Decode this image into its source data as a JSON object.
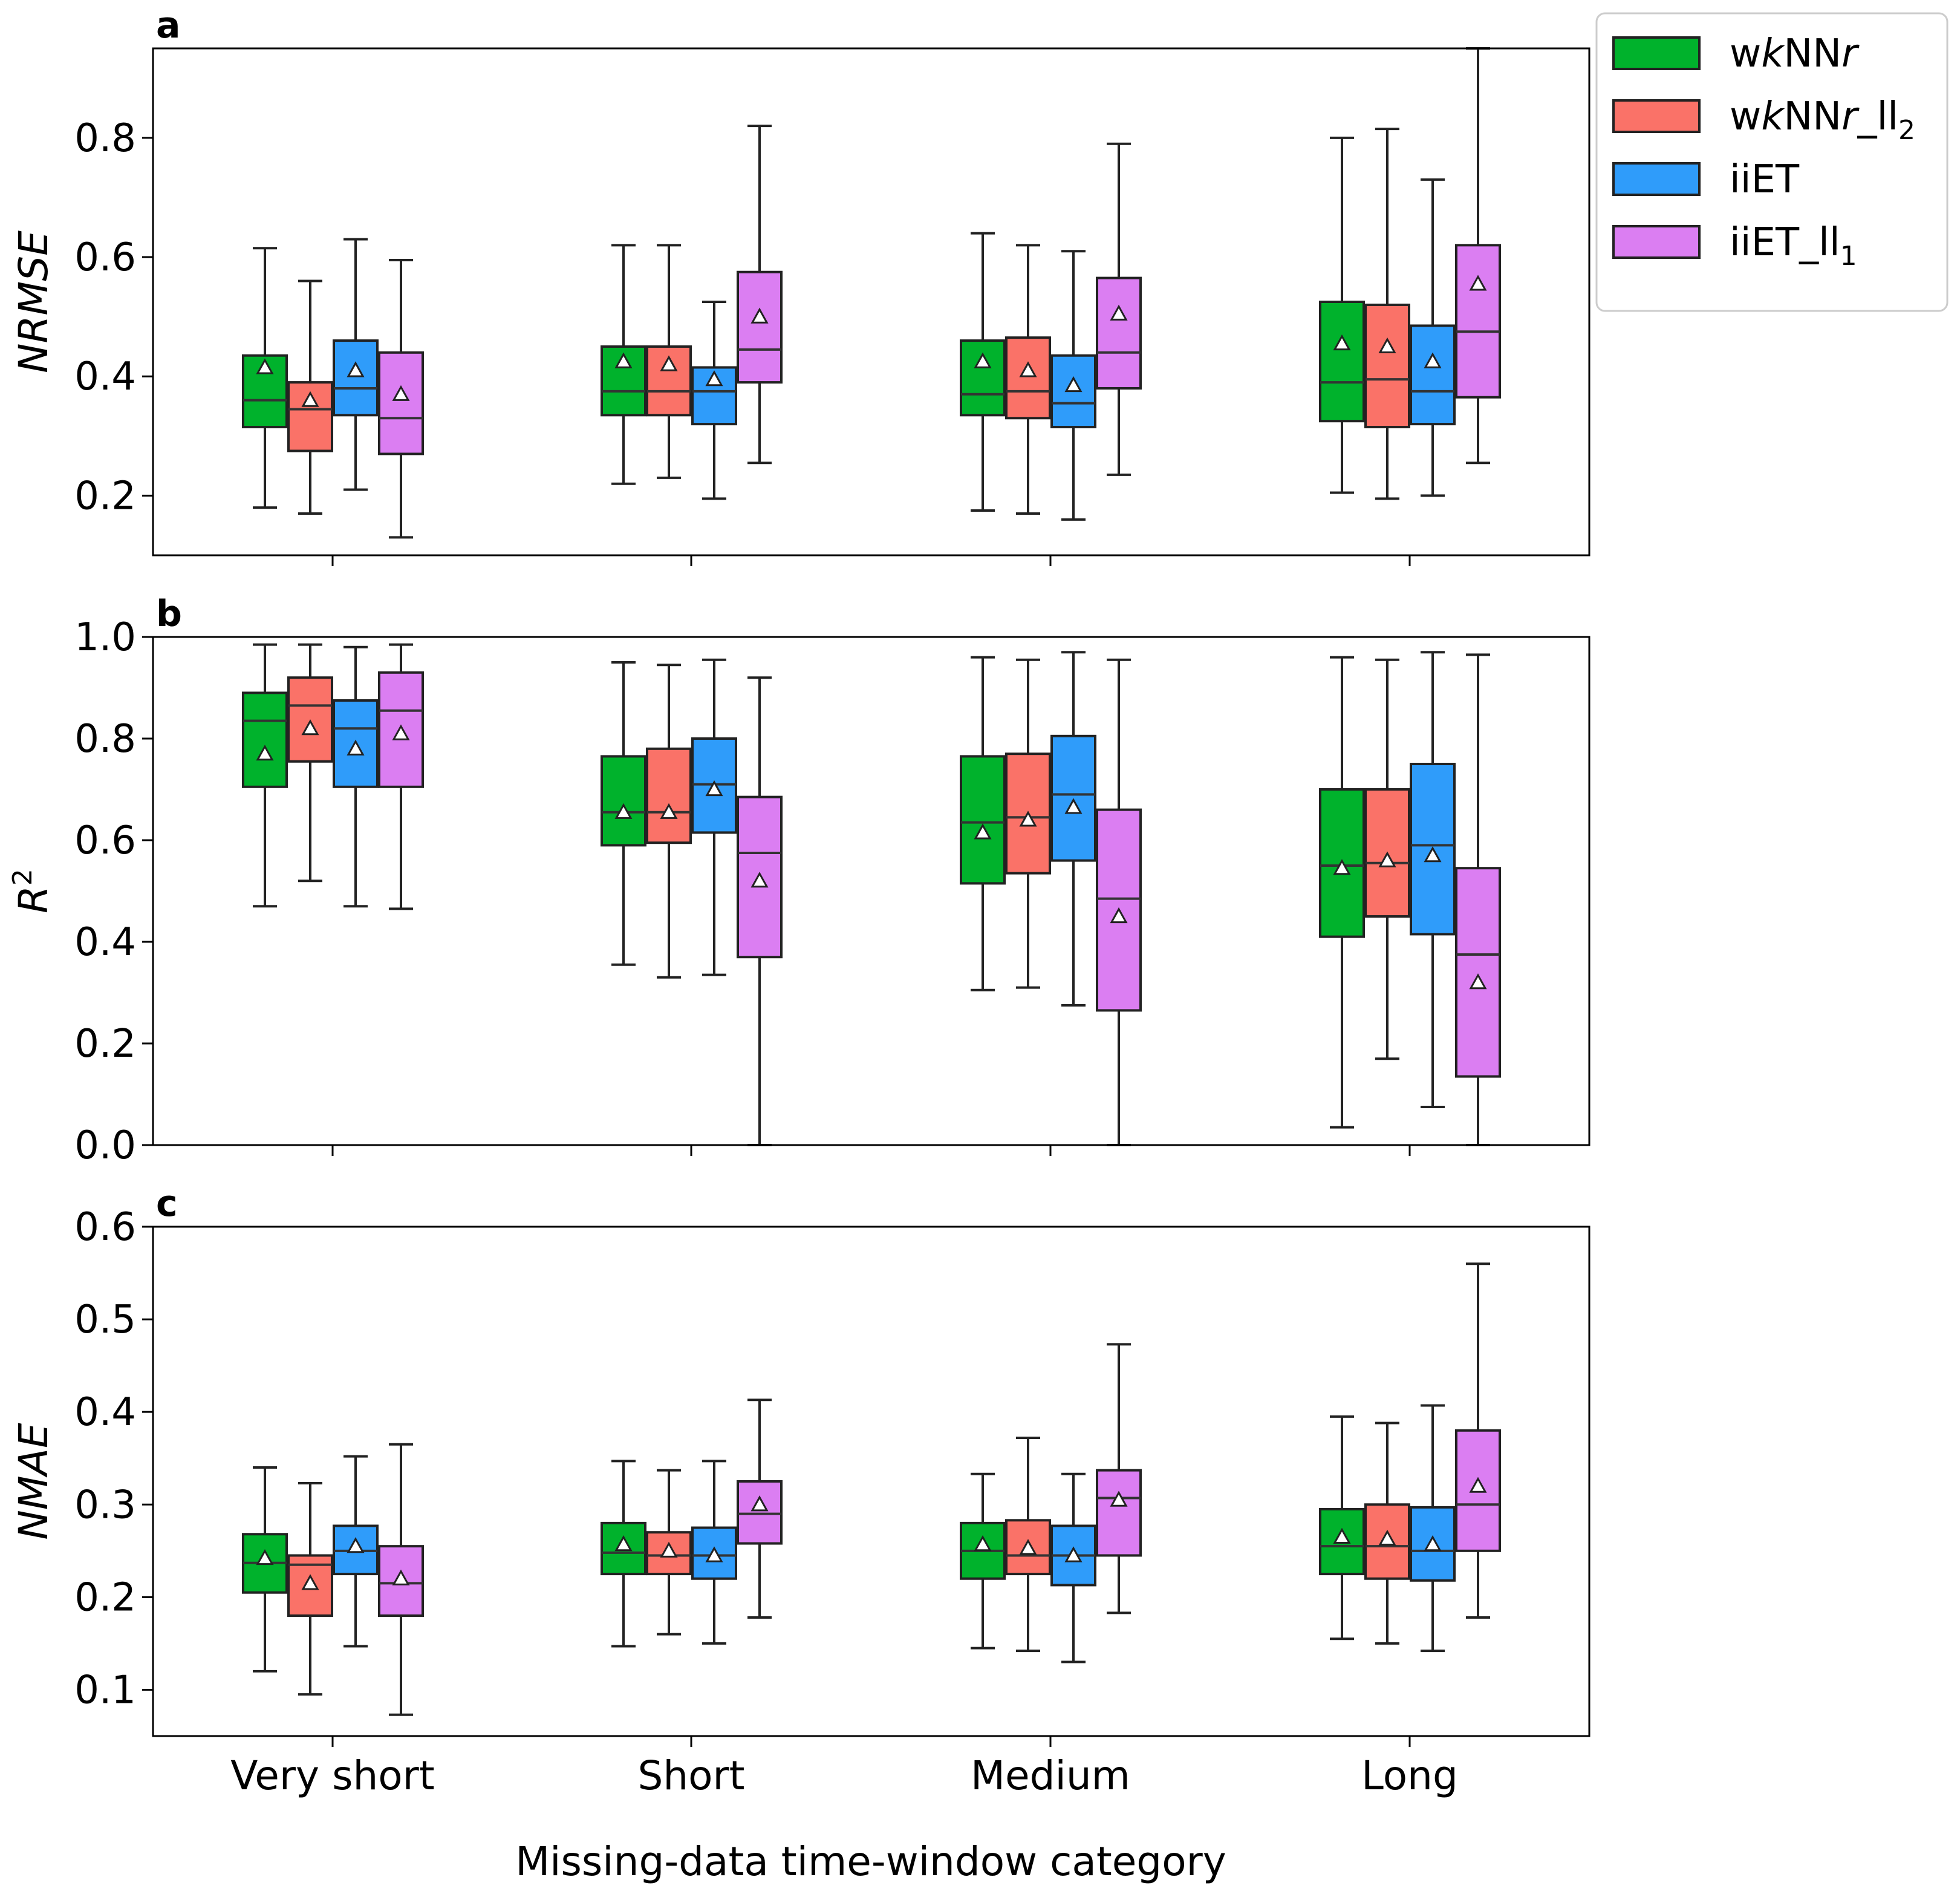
{
  "figure": {
    "xlabel": "Missing-data time-window category",
    "categories": [
      "Very short",
      "Short",
      "Medium",
      "Long"
    ]
  },
  "legend": {
    "placement": "top-right-outside",
    "entries": [
      {
        "pre": "w",
        "italic": "k",
        "mid": "NN",
        "italic2": "r",
        "post": "",
        "sub": "",
        "color": "#00b22c"
      },
      {
        "pre": "w",
        "italic": "k",
        "mid": "NN",
        "italic2": "r",
        "post": "_ll",
        "sub": "2",
        "color": "#fa7268"
      },
      {
        "pre": "iiET",
        "italic": "",
        "mid": "",
        "italic2": "",
        "post": "",
        "sub": "",
        "color": "#2f9cfa"
      },
      {
        "pre": "iiET_ll",
        "italic": "",
        "mid": "",
        "italic2": "",
        "post": "",
        "sub": "1",
        "color": "#db7ef2"
      }
    ]
  },
  "chart_data": [
    {
      "type": "box",
      "panel_letter": "a",
      "ylabel": "NRMSE",
      "ylabel_sup": "",
      "ylim": [
        0.1,
        0.95
      ],
      "yticks": [
        0.2,
        0.4,
        0.6,
        0.8
      ],
      "tick_decimals": 1,
      "categories": [
        "Very short",
        "Short",
        "Medium",
        "Long"
      ],
      "series": [
        {
          "name": "wkNNr",
          "color": "#00b22c",
          "boxes": [
            {
              "whislo": 0.18,
              "q1": 0.315,
              "median": 0.36,
              "q3": 0.435,
              "whishi": 0.615,
              "mean": 0.415
            },
            {
              "whislo": 0.22,
              "q1": 0.335,
              "median": 0.375,
              "q3": 0.45,
              "whishi": 0.62,
              "mean": 0.425
            },
            {
              "whislo": 0.175,
              "q1": 0.335,
              "median": 0.37,
              "q3": 0.46,
              "whishi": 0.64,
              "mean": 0.425
            },
            {
              "whislo": 0.205,
              "q1": 0.325,
              "median": 0.39,
              "q3": 0.525,
              "whishi": 0.8,
              "mean": 0.455
            }
          ]
        },
        {
          "name": "wkNNr_ll2",
          "color": "#fa7268",
          "boxes": [
            {
              "whislo": 0.17,
              "q1": 0.275,
              "median": 0.345,
              "q3": 0.39,
              "whishi": 0.56,
              "mean": 0.36
            },
            {
              "whislo": 0.23,
              "q1": 0.335,
              "median": 0.375,
              "q3": 0.45,
              "whishi": 0.62,
              "mean": 0.42
            },
            {
              "whislo": 0.17,
              "q1": 0.33,
              "median": 0.375,
              "q3": 0.465,
              "whishi": 0.62,
              "mean": 0.41
            },
            {
              "whislo": 0.195,
              "q1": 0.315,
              "median": 0.395,
              "q3": 0.52,
              "whishi": 0.815,
              "mean": 0.45
            }
          ]
        },
        {
          "name": "iiET",
          "color": "#2f9cfa",
          "boxes": [
            {
              "whislo": 0.21,
              "q1": 0.335,
              "median": 0.38,
              "q3": 0.46,
              "whishi": 0.63,
              "mean": 0.41
            },
            {
              "whislo": 0.195,
              "q1": 0.32,
              "median": 0.375,
              "q3": 0.415,
              "whishi": 0.525,
              "mean": 0.395
            },
            {
              "whislo": 0.16,
              "q1": 0.315,
              "median": 0.355,
              "q3": 0.435,
              "whishi": 0.61,
              "mean": 0.385
            },
            {
              "whislo": 0.2,
              "q1": 0.32,
              "median": 0.375,
              "q3": 0.485,
              "whishi": 0.73,
              "mean": 0.425
            }
          ]
        },
        {
          "name": "iiET_ll1",
          "color": "#db7ef2",
          "boxes": [
            {
              "whislo": 0.13,
              "q1": 0.27,
              "median": 0.33,
              "q3": 0.44,
              "whishi": 0.595,
              "mean": 0.37
            },
            {
              "whislo": 0.255,
              "q1": 0.39,
              "median": 0.445,
              "q3": 0.575,
              "whishi": 0.82,
              "mean": 0.5
            },
            {
              "whislo": 0.235,
              "q1": 0.38,
              "median": 0.44,
              "q3": 0.565,
              "whishi": 0.79,
              "mean": 0.505
            },
            {
              "whislo": 0.255,
              "q1": 0.365,
              "median": 0.475,
              "q3": 0.62,
              "whishi": 0.95,
              "mean": 0.555
            }
          ]
        }
      ]
    },
    {
      "type": "box",
      "panel_letter": "b",
      "ylabel": "R",
      "ylabel_sup": "2",
      "ylim": [
        0.0,
        1.0
      ],
      "yticks": [
        0.0,
        0.2,
        0.4,
        0.6,
        0.8,
        1.0
      ],
      "tick_decimals": 1,
      "categories": [
        "Very short",
        "Short",
        "Medium",
        "Long"
      ],
      "series": [
        {
          "name": "wkNNr",
          "color": "#00b22c",
          "boxes": [
            {
              "whislo": 0.47,
              "q1": 0.705,
              "median": 0.835,
              "q3": 0.89,
              "whishi": 0.985,
              "mean": 0.77
            },
            {
              "whislo": 0.355,
              "q1": 0.59,
              "median": 0.655,
              "q3": 0.765,
              "whishi": 0.95,
              "mean": 0.655
            },
            {
              "whislo": 0.305,
              "q1": 0.515,
              "median": 0.635,
              "q3": 0.765,
              "whishi": 0.96,
              "mean": 0.615
            },
            {
              "whislo": 0.035,
              "q1": 0.41,
              "median": 0.55,
              "q3": 0.7,
              "whishi": 0.96,
              "mean": 0.545
            }
          ]
        },
        {
          "name": "wkNNr_ll2",
          "color": "#fa7268",
          "boxes": [
            {
              "whislo": 0.52,
              "q1": 0.755,
              "median": 0.865,
              "q3": 0.92,
              "whishi": 0.985,
              "mean": 0.82
            },
            {
              "whislo": 0.33,
              "q1": 0.595,
              "median": 0.655,
              "q3": 0.78,
              "whishi": 0.945,
              "mean": 0.655
            },
            {
              "whislo": 0.31,
              "q1": 0.535,
              "median": 0.645,
              "q3": 0.77,
              "whishi": 0.955,
              "mean": 0.64
            },
            {
              "whislo": 0.17,
              "q1": 0.45,
              "median": 0.555,
              "q3": 0.7,
              "whishi": 0.955,
              "mean": 0.56
            }
          ]
        },
        {
          "name": "iiET",
          "color": "#2f9cfa",
          "boxes": [
            {
              "whislo": 0.47,
              "q1": 0.705,
              "median": 0.82,
              "q3": 0.875,
              "whishi": 0.98,
              "mean": 0.78
            },
            {
              "whislo": 0.335,
              "q1": 0.615,
              "median": 0.71,
              "q3": 0.8,
              "whishi": 0.955,
              "mean": 0.7
            },
            {
              "whislo": 0.275,
              "q1": 0.56,
              "median": 0.69,
              "q3": 0.805,
              "whishi": 0.97,
              "mean": 0.665
            },
            {
              "whislo": 0.075,
              "q1": 0.415,
              "median": 0.59,
              "q3": 0.75,
              "whishi": 0.97,
              "mean": 0.57
            }
          ]
        },
        {
          "name": "iiET_ll1",
          "color": "#db7ef2",
          "boxes": [
            {
              "whislo": 0.465,
              "q1": 0.705,
              "median": 0.855,
              "q3": 0.93,
              "whishi": 0.985,
              "mean": 0.81
            },
            {
              "whislo": 0.0,
              "q1": 0.37,
              "median": 0.575,
              "q3": 0.685,
              "whishi": 0.92,
              "mean": 0.52
            },
            {
              "whislo": 0.0,
              "q1": 0.265,
              "median": 0.485,
              "q3": 0.66,
              "whishi": 0.955,
              "mean": 0.45
            },
            {
              "whislo": 0.0,
              "q1": 0.135,
              "median": 0.375,
              "q3": 0.545,
              "whishi": 0.965,
              "mean": 0.32
            }
          ]
        }
      ]
    },
    {
      "type": "box",
      "panel_letter": "c",
      "ylabel": "NMAE",
      "ylabel_sup": "",
      "ylim": [
        0.05,
        0.6
      ],
      "yticks": [
        0.1,
        0.2,
        0.3,
        0.4,
        0.5,
        0.6
      ],
      "tick_decimals": 1,
      "categories": [
        "Very short",
        "Short",
        "Medium",
        "Long"
      ],
      "series": [
        {
          "name": "wkNNr",
          "color": "#00b22c",
          "boxes": [
            {
              "whislo": 0.12,
              "q1": 0.205,
              "median": 0.237,
              "q3": 0.268,
              "whishi": 0.34,
              "mean": 0.242
            },
            {
              "whislo": 0.147,
              "q1": 0.225,
              "median": 0.248,
              "q3": 0.28,
              "whishi": 0.347,
              "mean": 0.257
            },
            {
              "whislo": 0.145,
              "q1": 0.22,
              "median": 0.25,
              "q3": 0.28,
              "whishi": 0.333,
              "mean": 0.257
            },
            {
              "whislo": 0.155,
              "q1": 0.225,
              "median": 0.255,
              "q3": 0.295,
              "whishi": 0.395,
              "mean": 0.265
            }
          ]
        },
        {
          "name": "wkNNr_ll2",
          "color": "#fa7268",
          "boxes": [
            {
              "whislo": 0.095,
              "q1": 0.18,
              "median": 0.235,
              "q3": 0.245,
              "whishi": 0.323,
              "mean": 0.215
            },
            {
              "whislo": 0.16,
              "q1": 0.225,
              "median": 0.245,
              "q3": 0.27,
              "whishi": 0.337,
              "mean": 0.25
            },
            {
              "whislo": 0.142,
              "q1": 0.225,
              "median": 0.245,
              "q3": 0.283,
              "whishi": 0.372,
              "mean": 0.253
            },
            {
              "whislo": 0.15,
              "q1": 0.22,
              "median": 0.255,
              "q3": 0.3,
              "whishi": 0.388,
              "mean": 0.263
            }
          ]
        },
        {
          "name": "iiET",
          "color": "#2f9cfa",
          "boxes": [
            {
              "whislo": 0.147,
              "q1": 0.225,
              "median": 0.25,
              "q3": 0.277,
              "whishi": 0.352,
              "mean": 0.255
            },
            {
              "whislo": 0.15,
              "q1": 0.22,
              "median": 0.245,
              "q3": 0.275,
              "whishi": 0.347,
              "mean": 0.245
            },
            {
              "whislo": 0.13,
              "q1": 0.213,
              "median": 0.245,
              "q3": 0.277,
              "whishi": 0.333,
              "mean": 0.245
            },
            {
              "whislo": 0.142,
              "q1": 0.218,
              "median": 0.25,
              "q3": 0.297,
              "whishi": 0.407,
              "mean": 0.257
            }
          ]
        },
        {
          "name": "iiET_ll1",
          "color": "#db7ef2",
          "boxes": [
            {
              "whislo": 0.073,
              "q1": 0.18,
              "median": 0.215,
              "q3": 0.255,
              "whishi": 0.365,
              "mean": 0.22
            },
            {
              "whislo": 0.178,
              "q1": 0.258,
              "median": 0.29,
              "q3": 0.325,
              "whishi": 0.413,
              "mean": 0.3
            },
            {
              "whislo": 0.183,
              "q1": 0.245,
              "median": 0.307,
              "q3": 0.337,
              "whishi": 0.473,
              "mean": 0.305
            },
            {
              "whislo": 0.178,
              "q1": 0.25,
              "median": 0.3,
              "q3": 0.38,
              "whishi": 0.56,
              "mean": 0.32
            }
          ]
        }
      ]
    }
  ]
}
